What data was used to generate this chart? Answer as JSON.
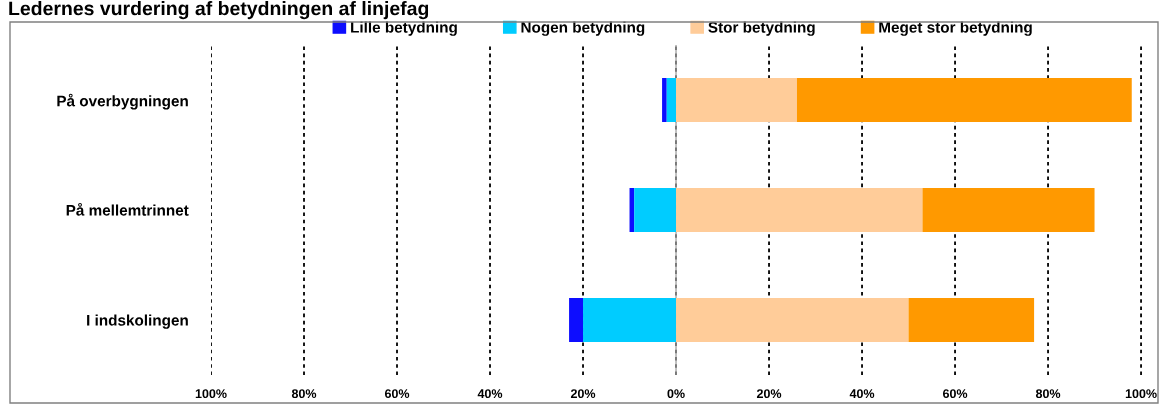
{
  "chart_data": {
    "type": "bar",
    "orientation": "horizontal",
    "title": "Ledernes vurdering af betydningen af linjefag",
    "categories": [
      "På overbygningen",
      "På mellemtrinnet",
      "I indskolingen"
    ],
    "series": [
      {
        "name": "Lille betydning",
        "color": "#0d0dff",
        "base": [
          -3,
          -10,
          -23
        ],
        "values": [
          1,
          1,
          3
        ]
      },
      {
        "name": "Nogen betydning",
        "color": "#00ccff",
        "base": [
          -2,
          -9,
          -20
        ],
        "values": [
          2,
          9,
          20
        ]
      },
      {
        "name": "Stor betydning",
        "color": "#ffcc99",
        "base": [
          0,
          0,
          0
        ],
        "values": [
          26,
          53,
          50
        ]
      },
      {
        "name": "Meget stor betydning",
        "color": "#ff9900",
        "base": [
          26,
          53,
          50
        ],
        "values": [
          72,
          37,
          27
        ]
      }
    ],
    "xlim": [
      -100,
      103
    ],
    "xticks": [
      {
        "value": -100,
        "label": "100%"
      },
      {
        "value": -80,
        "label": "80%"
      },
      {
        "value": -60,
        "label": "60%"
      },
      {
        "value": -40,
        "label": "40%"
      },
      {
        "value": -20,
        "label": "20%"
      },
      {
        "value": 0,
        "label": "0%"
      },
      {
        "value": 20,
        "label": "20%"
      },
      {
        "value": 40,
        "label": "40%"
      },
      {
        "value": 60,
        "label": "60%"
      },
      {
        "value": 80,
        "label": "80%"
      },
      {
        "value": 100,
        "label": "100%"
      }
    ],
    "ref_lines": [
      {
        "axis": "x",
        "value": 0,
        "color": "#a6a6a6"
      }
    ],
    "grid": "x",
    "legend": "top"
  }
}
